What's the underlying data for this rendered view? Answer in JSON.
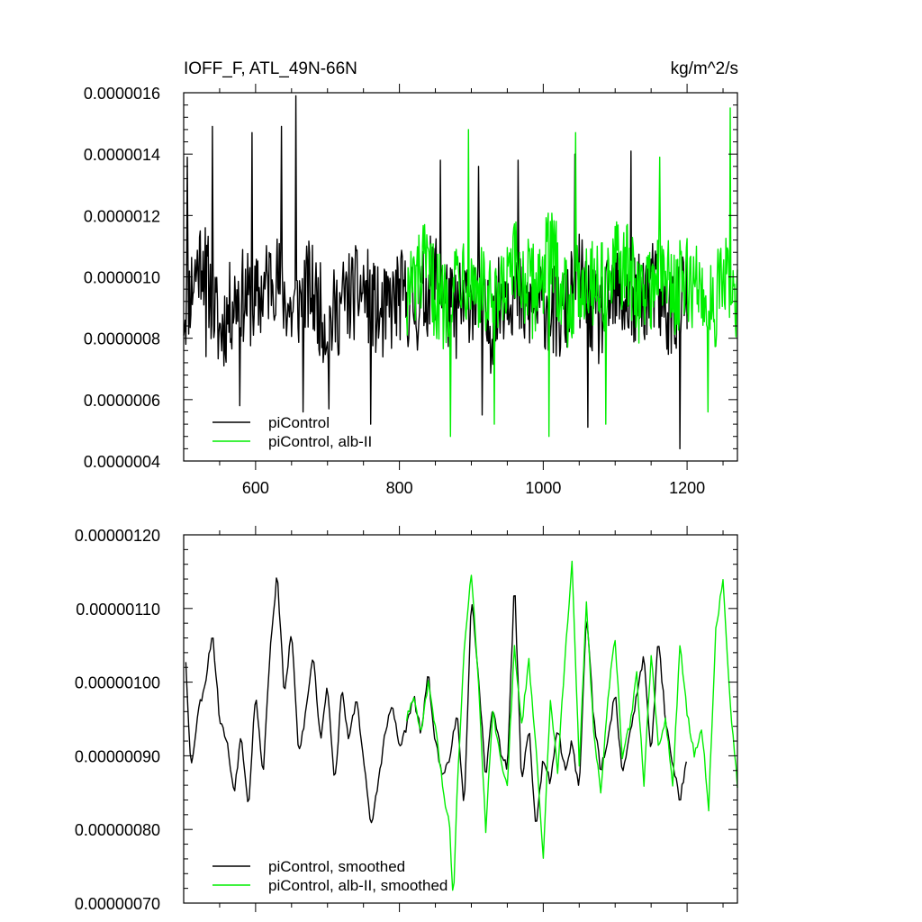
{
  "chart_data": [
    {
      "type": "line",
      "title": "IOFF_F, ATL_49N-66N",
      "units": "kg/m^2/s",
      "xlim": [
        500,
        1270
      ],
      "ylim": [
        4e-07,
        1.6e-06
      ],
      "x_ticks": [
        600,
        800,
        1000,
        1200
      ],
      "x_tick_labels": [
        "600",
        "800",
        "1000",
        "1200"
      ],
      "y_ticks": [
        4e-07,
        6e-07,
        8e-07,
        1e-06,
        1.2e-06,
        1.4e-06,
        1.6e-06
      ],
      "y_tick_labels": [
        "0.0000004",
        "0.0000006",
        "0.0000008",
        "0.0000010",
        "0.0000012",
        "0.0000014",
        "0.0000016"
      ],
      "legend_position": "bottom-left",
      "series": [
        {
          "name": "piControl",
          "color": "#000000",
          "x": [
            500,
            525,
            550,
            575,
            600,
            625,
            650,
            675,
            700,
            725,
            750,
            775,
            800,
            825,
            850,
            875,
            900,
            925,
            950,
            975,
            1000,
            1025,
            1050,
            1075,
            1100,
            1125,
            1150,
            1175,
            1200
          ],
          "y": [
            8.9e-07,
            1.08e-06,
            8.2e-07,
            9.5e-07,
            9.1e-07,
            1.02e-06,
            8.8e-07,
            9.7e-07,
            8.4e-07,
            9.3e-07,
            9.6e-07,
            8.6e-07,
            9.4e-07,
            9e-07,
            1.01e-06,
            8.7e-07,
            9.5e-07,
            8.3e-07,
            9.8e-07,
            8.9e-07,
            9.2e-07,
            8.6e-07,
            9.9e-07,
            8.5e-07,
            9.4e-07,
            9e-07,
            9.7e-07,
            8.8e-07,
            9.3e-07
          ],
          "spikes": [
            [
              505,
              1.39e-06
            ],
            [
              531,
              7.4e-07
            ],
            [
              540,
              1.49e-06
            ],
            [
              578,
              5.8e-07
            ],
            [
              595,
              1.47e-06
            ],
            [
              636,
              1.49e-06
            ],
            [
              656,
              1.59e-06
            ],
            [
              666,
              5.6e-07
            ],
            [
              702,
              5.7e-07
            ],
            [
              760,
              5.2e-07
            ],
            [
              857,
              1.38e-06
            ],
            [
              910,
              1.36e-06
            ],
            [
              915,
              5.5e-07
            ],
            [
              965,
              1.38e-06
            ],
            [
              1044,
              1.4e-06
            ],
            [
              1062,
              5.1e-07
            ],
            [
              1122,
              1.41e-06
            ],
            [
              1190,
              4.4e-07
            ]
          ]
        },
        {
          "name": "piControl, alb-II",
          "color": "#00ee00",
          "x": [
            810,
            835,
            860,
            885,
            910,
            935,
            960,
            985,
            1010,
            1035,
            1060,
            1085,
            1110,
            1135,
            1160,
            1185,
            1210,
            1235,
            1260,
            1270
          ],
          "y": [
            9.4e-07,
            1.02e-06,
            9.1e-07,
            1.04e-06,
            9.7e-07,
            8.8e-07,
            1.03e-06,
            9.5e-07,
            1.08e-06,
            9.2e-07,
            1.01e-06,
            9.7e-07,
            1.05e-06,
            9.3e-07,
            1.02e-06,
            9.6e-07,
            9.8e-07,
            9.1e-07,
            1e-06,
            8.7e-07
          ],
          "spikes": [
            [
              871,
              4.8e-07
            ],
            [
              896,
              1.48e-06
            ],
            [
              932,
              5.2e-07
            ],
            [
              1008,
              4.8e-07
            ],
            [
              1045,
              1.47e-06
            ],
            [
              1087,
              5.2e-07
            ],
            [
              1162,
              1.39e-06
            ],
            [
              1229,
              5.6e-07
            ],
            [
              1260,
              1.55e-06
            ]
          ]
        }
      ]
    },
    {
      "type": "line",
      "title": "",
      "xlim": [
        500,
        1270
      ],
      "ylim": [
        7e-07,
        1.2e-06
      ],
      "x_ticks": [
        600,
        800,
        1000,
        1200
      ],
      "y_ticks": [
        7e-07,
        8e-07,
        9e-07,
        1e-06,
        1.1e-06,
        1.2e-06
      ],
      "y_tick_labels": [
        "0.00000070",
        "0.00000080",
        "0.00000090",
        "0.00000100",
        "0.00000110",
        "0.00000120"
      ],
      "legend_position": "bottom-left",
      "series": [
        {
          "name": "piControl, smoothed",
          "color": "#000000",
          "x": [
            503,
            510,
            520,
            530,
            540,
            550,
            560,
            570,
            580,
            590,
            600,
            610,
            620,
            630,
            640,
            650,
            660,
            670,
            680,
            690,
            700,
            710,
            720,
            730,
            740,
            750,
            760,
            770,
            780,
            790,
            800,
            810,
            820,
            830,
            840,
            850,
            860,
            870,
            880,
            890,
            900,
            910,
            920,
            930,
            940,
            950,
            960,
            970,
            980,
            990,
            1000,
            1010,
            1020,
            1030,
            1040,
            1050,
            1060,
            1070,
            1080,
            1090,
            1100,
            1110,
            1120,
            1130,
            1140,
            1150,
            1160,
            1170,
            1180,
            1190,
            1200
          ],
          "y": [
            1.03e-06,
            8.8e-07,
            9.6e-07,
            1e-06,
            1.07e-06,
            9.5e-07,
            9.2e-07,
            8.5e-07,
            9.3e-07,
            8.3e-07,
            9.9e-07,
            8.7e-07,
            1.04e-06,
            1.15e-06,
            9.8e-07,
            1.07e-06,
            9e-07,
            9.6e-07,
            1.04e-06,
            9.2e-07,
            1e-06,
            8.6e-07,
            9.9e-07,
            9.2e-07,
            9.8e-07,
            9e-07,
            8e-07,
            8.6e-07,
            9.3e-07,
            9.7e-07,
            9.1e-07,
            9.4e-07,
            9.8e-07,
            9.3e-07,
            1.01e-06,
            9.2e-07,
            8.7e-07,
            9e-07,
            9.6e-07,
            8.2e-07,
            1.12e-06,
            1e-06,
            8.7e-07,
            9.7e-07,
            9.1e-07,
            8.8e-07,
            1.14e-06,
            8.6e-07,
            9.4e-07,
            8e-07,
            9e-07,
            8.6e-07,
            9.4e-07,
            8.8e-07,
            9.2e-07,
            8.5e-07,
            1.1e-06,
            9.5e-07,
            8.8e-07,
            9.2e-07,
            9.9e-07,
            8.7e-07,
            9.3e-07,
            9.8e-07,
            1.04e-06,
            9e-07,
            1.06e-06,
            9.5e-07,
            8.9e-07,
            8.4e-07,
            9e-07
          ]
        },
        {
          "name": "piControl, alb-II, smoothed",
          "color": "#00ee00",
          "x": [
            810,
            820,
            830,
            840,
            850,
            860,
            870,
            875,
            880,
            890,
            900,
            910,
            920,
            930,
            940,
            950,
            960,
            970,
            980,
            990,
            1000,
            1010,
            1020,
            1030,
            1040,
            1050,
            1060,
            1070,
            1080,
            1090,
            1100,
            1110,
            1120,
            1130,
            1140,
            1150,
            1160,
            1170,
            1180,
            1190,
            1200,
            1210,
            1220,
            1230,
            1240,
            1250,
            1260,
            1270
          ],
          "y": [
            9.5e-07,
            9.8e-07,
            9.3e-07,
            1e-06,
            9.4e-07,
            8.6e-07,
            8e-07,
            7e-07,
            8.5e-07,
            1.04e-06,
            1.15e-06,
            1e-06,
            8e-07,
            9.6e-07,
            9e-07,
            8.6e-07,
            1.05e-06,
            9.4e-07,
            1.03e-06,
            9.1e-07,
            7.6e-07,
            9.8e-07,
            8.8e-07,
            1.03e-06,
            1.16e-06,
            8.9e-07,
            1.11e-06,
            9.3e-07,
            8.5e-07,
            9.8e-07,
            1.06e-06,
            9e-07,
            9.4e-07,
            1.01e-06,
            8.6e-07,
            1.04e-06,
            9.1e-07,
            9.5e-07,
            8.6e-07,
            1.05e-06,
            9.6e-07,
            9e-07,
            9.4e-07,
            8.3e-07,
            1.07e-06,
            1.14e-06,
            9.7e-07,
            8.6e-07
          ]
        }
      ]
    }
  ]
}
